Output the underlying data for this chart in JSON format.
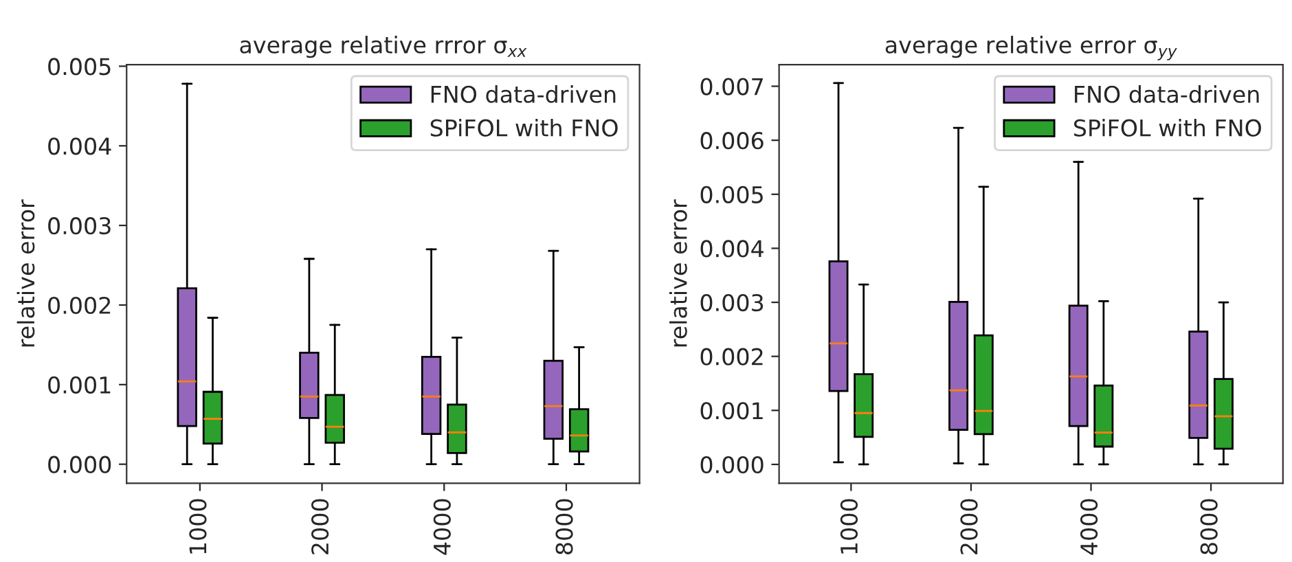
{
  "chart_data": [
    {
      "type": "box",
      "title": "average relative rrror σ$_{xx}$",
      "ylabel": "relative error",
      "categories": [
        "1000",
        "2000",
        "4000",
        "8000"
      ],
      "legend": "top right",
      "grid": false,
      "ylim": [
        -0.00024,
        0.00502
      ],
      "yticks": [
        {
          "value": 0,
          "label": "0.000"
        },
        {
          "value": 0.001,
          "label": "0.001"
        },
        {
          "value": 0.002,
          "label": "0.002"
        },
        {
          "value": 0.003,
          "label": "0.003"
        },
        {
          "value": 0.004,
          "label": "0.004"
        },
        {
          "value": 0.005,
          "label": "0.005"
        }
      ],
      "series": [
        {
          "name": "FNO data-driven",
          "color": "#9467bd",
          "boxes": [
            {
              "low": 0,
              "q1": 0.00048,
              "median": 0.00104,
              "q3": 0.00221,
              "high": 0.00478
            },
            {
              "low": 0,
              "q1": 0.00058,
              "median": 0.00085,
              "q3": 0.0014,
              "high": 0.00258
            },
            {
              "low": 0,
              "q1": 0.00038,
              "median": 0.00085,
              "q3": 0.00135,
              "high": 0.0027
            },
            {
              "low": 0,
              "q1": 0.00032,
              "median": 0.00073,
              "q3": 0.0013,
              "high": 0.00268
            }
          ]
        },
        {
          "name": "SPiFOL with FNO",
          "color": "#2ca02c",
          "boxes": [
            {
              "low": 0,
              "q1": 0.00026,
              "median": 0.00057,
              "q3": 0.00091,
              "high": 0.00184
            },
            {
              "low": 0,
              "q1": 0.00027,
              "median": 0.00047,
              "q3": 0.00087,
              "high": 0.00175
            },
            {
              "low": 0,
              "q1": 0.00014,
              "median": 0.0004,
              "q3": 0.00075,
              "high": 0.00159
            },
            {
              "low": 0,
              "q1": 0.00016,
              "median": 0.00036,
              "q3": 0.00069,
              "high": 0.00147
            }
          ]
        }
      ]
    },
    {
      "type": "box",
      "title": "average relative error σ$_{yy}$",
      "ylabel": "relative error",
      "categories": [
        "1000",
        "2000",
        "4000",
        "8000"
      ],
      "legend": "top right",
      "grid": false,
      "ylim": [
        -0.00035,
        0.0074
      ],
      "yticks": [
        {
          "value": 0,
          "label": "0.000"
        },
        {
          "value": 0.001,
          "label": "0.001"
        },
        {
          "value": 0.002,
          "label": "0.002"
        },
        {
          "value": 0.003,
          "label": "0.003"
        },
        {
          "value": 0.004,
          "label": "0.004"
        },
        {
          "value": 0.005,
          "label": "0.005"
        },
        {
          "value": 0.006,
          "label": "0.006"
        },
        {
          "value": 0.007,
          "label": "0.007"
        }
      ],
      "series": [
        {
          "name": "FNO data-driven",
          "color": "#9467bd",
          "boxes": [
            {
              "low": 4e-05,
              "q1": 0.00136,
              "median": 0.00224,
              "q3": 0.00376,
              "high": 0.00706
            },
            {
              "low": 2e-05,
              "q1": 0.00064,
              "median": 0.00137,
              "q3": 0.00301,
              "high": 0.00623
            },
            {
              "low": 0,
              "q1": 0.00071,
              "median": 0.00163,
              "q3": 0.00294,
              "high": 0.0056
            },
            {
              "low": 0,
              "q1": 0.00049,
              "median": 0.00109,
              "q3": 0.00246,
              "high": 0.00492
            }
          ]
        },
        {
          "name": "SPiFOL with FNO",
          "color": "#2ca02c",
          "boxes": [
            {
              "low": 0,
              "q1": 0.00051,
              "median": 0.00095,
              "q3": 0.00167,
              "high": 0.00333
            },
            {
              "low": 0,
              "q1": 0.00056,
              "median": 0.00099,
              "q3": 0.00239,
              "high": 0.00514
            },
            {
              "low": 0,
              "q1": 0.00033,
              "median": 0.00059,
              "q3": 0.00146,
              "high": 0.00302
            },
            {
              "low": 0,
              "q1": 0.00029,
              "median": 0.00089,
              "q3": 0.00158,
              "high": 0.003
            }
          ]
        }
      ]
    }
  ]
}
